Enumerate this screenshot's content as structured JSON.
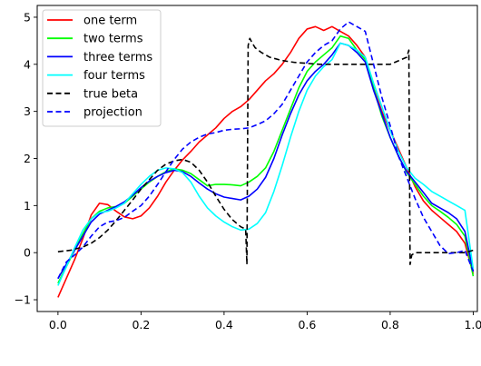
{
  "chart_data": {
    "type": "line",
    "title": "",
    "xlabel": "",
    "ylabel": "",
    "xlim": [
      -0.05,
      1.01
    ],
    "ylim": [
      -1.25,
      5.25
    ],
    "xticks": [
      0.0,
      0.2,
      0.4,
      0.6,
      0.8,
      1.0
    ],
    "xtick_labels": [
      "0.0",
      "0.2",
      "0.4",
      "0.6",
      "0.8",
      "1.0"
    ],
    "yticks": [
      -1,
      0,
      1,
      2,
      3,
      4,
      5
    ],
    "ytick_labels": [
      "−1",
      "0",
      "1",
      "2",
      "3",
      "4",
      "5"
    ],
    "grid": false,
    "legend_position": "top-left",
    "series": [
      {
        "name": "one term",
        "color": "#ff0000",
        "dash": "solid",
        "x": [
          0.0,
          0.02,
          0.04,
          0.06,
          0.08,
          0.1,
          0.12,
          0.14,
          0.16,
          0.18,
          0.2,
          0.22,
          0.24,
          0.26,
          0.28,
          0.3,
          0.32,
          0.34,
          0.36,
          0.38,
          0.4,
          0.42,
          0.44,
          0.46,
          0.48,
          0.5,
          0.52,
          0.54,
          0.56,
          0.58,
          0.6,
          0.62,
          0.64,
          0.66,
          0.68,
          0.7,
          0.72,
          0.74,
          0.76,
          0.78,
          0.8,
          0.82,
          0.84,
          0.86,
          0.88,
          0.9,
          0.92,
          0.94,
          0.96,
          0.98,
          1.0
        ],
        "y": [
          -0.95,
          -0.55,
          -0.15,
          0.3,
          0.8,
          1.05,
          1.02,
          0.88,
          0.76,
          0.72,
          0.78,
          0.95,
          1.2,
          1.5,
          1.75,
          1.97,
          2.15,
          2.35,
          2.5,
          2.65,
          2.85,
          3.0,
          3.1,
          3.25,
          3.45,
          3.65,
          3.8,
          4.0,
          4.25,
          4.55,
          4.75,
          4.8,
          4.72,
          4.8,
          4.7,
          4.6,
          4.4,
          4.15,
          3.5,
          3.0,
          2.6,
          2.2,
          1.8,
          1.4,
          1.1,
          0.9,
          0.75,
          0.6,
          0.45,
          0.2,
          -0.45
        ]
      },
      {
        "name": "two terms",
        "color": "#00ff00",
        "dash": "solid",
        "x": [
          0.0,
          0.02,
          0.04,
          0.06,
          0.08,
          0.1,
          0.12,
          0.14,
          0.16,
          0.18,
          0.2,
          0.22,
          0.24,
          0.26,
          0.28,
          0.3,
          0.32,
          0.34,
          0.36,
          0.38,
          0.4,
          0.42,
          0.44,
          0.46,
          0.48,
          0.5,
          0.52,
          0.54,
          0.56,
          0.58,
          0.6,
          0.62,
          0.64,
          0.66,
          0.68,
          0.7,
          0.72,
          0.74,
          0.76,
          0.78,
          0.8,
          0.82,
          0.84,
          0.86,
          0.88,
          0.9,
          0.92,
          0.94,
          0.96,
          0.98,
          1.0
        ],
        "y": [
          -0.65,
          -0.3,
          0.05,
          0.4,
          0.72,
          0.88,
          0.95,
          0.98,
          1.05,
          1.2,
          1.35,
          1.5,
          1.62,
          1.72,
          1.78,
          1.75,
          1.68,
          1.55,
          1.42,
          1.45,
          1.45,
          1.44,
          1.42,
          1.5,
          1.62,
          1.8,
          2.15,
          2.6,
          3.05,
          3.5,
          3.85,
          4.05,
          4.2,
          4.35,
          4.6,
          4.55,
          4.3,
          4.1,
          3.5,
          2.9,
          2.45,
          2.05,
          1.7,
          1.45,
          1.2,
          1.0,
          0.88,
          0.75,
          0.6,
          0.35,
          -0.5
        ]
      },
      {
        "name": "three terms",
        "color": "#0000ff",
        "dash": "solid",
        "x": [
          0.0,
          0.02,
          0.04,
          0.06,
          0.08,
          0.1,
          0.12,
          0.14,
          0.16,
          0.18,
          0.2,
          0.22,
          0.24,
          0.26,
          0.28,
          0.3,
          0.32,
          0.34,
          0.36,
          0.38,
          0.4,
          0.42,
          0.44,
          0.46,
          0.48,
          0.5,
          0.52,
          0.54,
          0.56,
          0.58,
          0.6,
          0.62,
          0.64,
          0.66,
          0.68,
          0.7,
          0.72,
          0.74,
          0.76,
          0.78,
          0.8,
          0.82,
          0.84,
          0.86,
          0.88,
          0.9,
          0.92,
          0.94,
          0.96,
          0.98,
          1.0
        ],
        "y": [
          -0.55,
          -0.25,
          0.05,
          0.35,
          0.65,
          0.82,
          0.9,
          0.98,
          1.08,
          1.22,
          1.38,
          1.52,
          1.62,
          1.7,
          1.75,
          1.72,
          1.62,
          1.48,
          1.35,
          1.25,
          1.18,
          1.15,
          1.12,
          1.2,
          1.35,
          1.6,
          2.0,
          2.5,
          2.95,
          3.35,
          3.65,
          3.85,
          4.0,
          4.2,
          4.45,
          4.4,
          4.25,
          4.05,
          3.45,
          2.95,
          2.45,
          2.05,
          1.72,
          1.5,
          1.28,
          1.05,
          0.95,
          0.85,
          0.72,
          0.45,
          -0.4
        ]
      },
      {
        "name": "four terms",
        "color": "#00ffff",
        "dash": "solid",
        "x": [
          0.0,
          0.02,
          0.04,
          0.06,
          0.08,
          0.1,
          0.12,
          0.14,
          0.16,
          0.18,
          0.2,
          0.22,
          0.24,
          0.26,
          0.28,
          0.3,
          0.32,
          0.34,
          0.36,
          0.38,
          0.4,
          0.42,
          0.44,
          0.46,
          0.48,
          0.5,
          0.52,
          0.54,
          0.56,
          0.58,
          0.6,
          0.62,
          0.64,
          0.66,
          0.68,
          0.7,
          0.72,
          0.74,
          0.76,
          0.78,
          0.8,
          0.82,
          0.84,
          0.86,
          0.88,
          0.9,
          0.92,
          0.94,
          0.96,
          0.98,
          1.0
        ],
        "y": [
          -0.7,
          -0.3,
          0.1,
          0.48,
          0.72,
          0.85,
          0.88,
          0.95,
          1.05,
          1.25,
          1.45,
          1.62,
          1.75,
          1.8,
          1.78,
          1.7,
          1.5,
          1.2,
          0.95,
          0.78,
          0.65,
          0.55,
          0.48,
          0.5,
          0.62,
          0.85,
          1.3,
          1.85,
          2.45,
          3.0,
          3.45,
          3.75,
          3.95,
          4.1,
          4.45,
          4.4,
          4.3,
          4.15,
          3.6,
          3.1,
          2.6,
          2.15,
          1.8,
          1.58,
          1.45,
          1.3,
          1.2,
          1.1,
          1.0,
          0.9,
          -0.35
        ]
      },
      {
        "name": "true beta",
        "color": "#000000",
        "dash": "dashed",
        "x": [
          0.0,
          0.03,
          0.06,
          0.08,
          0.1,
          0.12,
          0.14,
          0.16,
          0.18,
          0.2,
          0.22,
          0.24,
          0.26,
          0.28,
          0.3,
          0.32,
          0.34,
          0.36,
          0.38,
          0.4,
          0.42,
          0.44,
          0.452,
          0.455,
          0.458,
          0.462,
          0.468,
          0.475,
          0.49,
          0.51,
          0.54,
          0.57,
          0.6,
          0.63,
          0.66,
          0.7,
          0.75,
          0.8,
          0.84,
          0.845,
          0.848,
          0.852,
          0.86,
          0.88,
          0.9,
          0.92,
          0.94,
          0.96,
          0.98,
          1.0
        ],
        "y": [
          0.02,
          0.05,
          0.12,
          0.2,
          0.32,
          0.48,
          0.68,
          0.9,
          1.12,
          1.35,
          1.55,
          1.75,
          1.88,
          1.95,
          1.98,
          1.92,
          1.75,
          1.5,
          1.2,
          0.92,
          0.7,
          0.55,
          0.5,
          -0.25,
          4.4,
          4.55,
          4.45,
          4.35,
          4.25,
          4.15,
          4.08,
          4.04,
          4.02,
          4.0,
          4.0,
          4.0,
          4.0,
          4.0,
          4.15,
          4.3,
          -0.25,
          -0.05,
          0.0,
          0.0,
          0.0,
          0.0,
          0.0,
          0.0,
          0.0,
          0.05
        ]
      },
      {
        "name": "projection",
        "color": "#0000ff",
        "dash": "dashed",
        "x": [
          0.0,
          0.02,
          0.04,
          0.06,
          0.08,
          0.1,
          0.12,
          0.14,
          0.16,
          0.18,
          0.2,
          0.22,
          0.24,
          0.26,
          0.28,
          0.3,
          0.32,
          0.34,
          0.36,
          0.38,
          0.4,
          0.42,
          0.44,
          0.46,
          0.48,
          0.5,
          0.52,
          0.54,
          0.56,
          0.58,
          0.6,
          0.62,
          0.64,
          0.66,
          0.68,
          0.7,
          0.72,
          0.74,
          0.76,
          0.78,
          0.8,
          0.82,
          0.84,
          0.86,
          0.88,
          0.9,
          0.92,
          0.94,
          0.96,
          0.98,
          1.0
        ],
        "y": [
          -0.55,
          -0.2,
          -0.05,
          0.12,
          0.35,
          0.55,
          0.65,
          0.68,
          0.75,
          0.88,
          1.0,
          1.2,
          1.45,
          1.72,
          1.98,
          2.2,
          2.35,
          2.45,
          2.52,
          2.55,
          2.6,
          2.62,
          2.63,
          2.65,
          2.72,
          2.8,
          2.95,
          3.15,
          3.45,
          3.75,
          4.05,
          4.25,
          4.4,
          4.5,
          4.75,
          4.9,
          4.8,
          4.7,
          4.0,
          3.3,
          2.7,
          2.05,
          1.6,
          1.15,
          0.75,
          0.45,
          0.15,
          -0.02,
          0.0,
          0.05,
          -0.4
        ]
      }
    ]
  }
}
